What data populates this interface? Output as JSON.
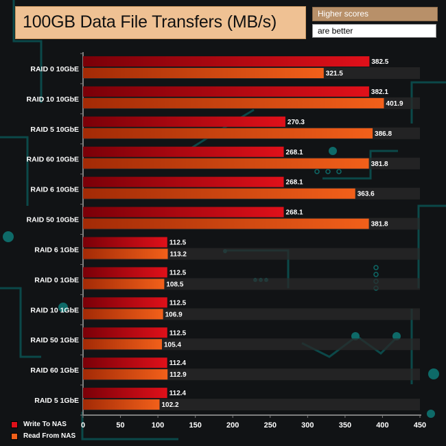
{
  "header": {
    "title": "100GB Data File Transfers (MB/s)",
    "note_line1": "Higher scores",
    "note_line2": "are better"
  },
  "colors": {
    "write": "#e0101a",
    "write_dark": "#7a0008",
    "read": "#f2601a",
    "read_dark": "#a32a06",
    "background": "#111315",
    "accent": "#0d5a5a"
  },
  "chart_data": {
    "type": "bar",
    "orientation": "horizontal",
    "title": "100GB Data File Transfers (MB/s)",
    "categories": [
      "RAID 0 10GbE",
      "RAID 10 10GbE",
      "RAID 5 10GbE",
      "RAID 60 10GbE",
      "RAID 6 10GbE",
      "RAID 50 10GbE",
      "RAID 6 1GbE",
      "RAID 0 1GbE",
      "RAID 10 1GbE",
      "RAID 50 1GbE",
      "RAID 60 1GbE",
      "RAID 5 1GbE"
    ],
    "series": [
      {
        "name": "Write To NAS",
        "values": [
          382.5,
          382.1,
          270.3,
          268.1,
          268.1,
          268.1,
          112.5,
          112.5,
          112.5,
          112.5,
          112.4,
          112.4
        ]
      },
      {
        "name": "Read From NAS",
        "values": [
          321.5,
          401.9,
          386.8,
          381.8,
          363.6,
          381.8,
          113.2,
          108.5,
          106.9,
          105.4,
          112.9,
          102.2
        ]
      }
    ],
    "xlim": [
      0,
      450
    ],
    "xticks": [
      "0",
      "50",
      "100",
      "150",
      "200",
      "250",
      "300",
      "350",
      "400",
      "450"
    ],
    "legend_position": "bottom-left",
    "grid": false
  }
}
